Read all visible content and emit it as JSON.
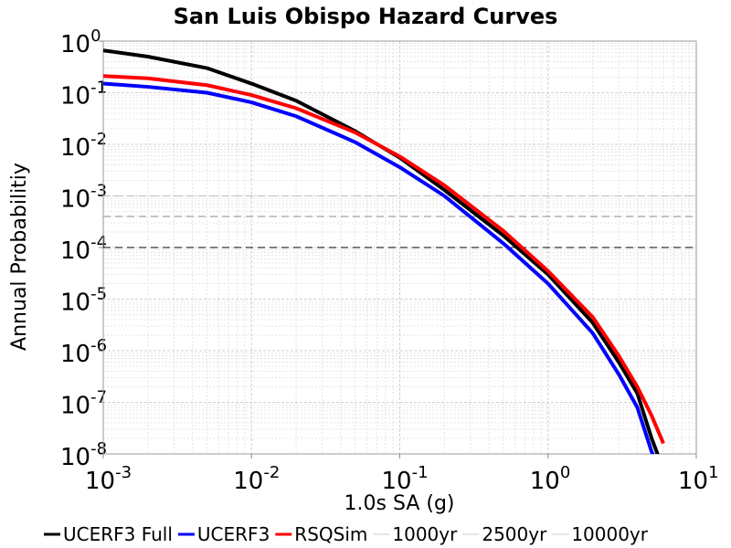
{
  "chart_data": {
    "type": "line",
    "title": "San Luis Obispo Hazard Curves",
    "xlabel": "1.0s SA (g)",
    "ylabel": "Annual Probabilitiy",
    "xscale": "log",
    "yscale": "log",
    "grid": true,
    "legend": "bottom",
    "x": [
      0.001,
      0.002,
      0.005,
      0.01,
      0.02,
      0.05,
      0.1,
      0.2,
      0.5,
      1,
      2,
      3,
      4,
      5,
      6
    ],
    "series": [
      {
        "name": "UCERF3 Full",
        "color": "#000000",
        "values": [
          0.66,
          0.5,
          0.3,
          0.15,
          0.07,
          0.018,
          0.0055,
          0.0013,
          0.00017,
          3e-05,
          3.5e-06,
          6e-07,
          1.5e-07,
          2e-08,
          5e-09
        ]
      },
      {
        "name": "UCERF3",
        "color": "#0000ff",
        "values": [
          0.15,
          0.13,
          0.1,
          0.065,
          0.035,
          0.011,
          0.0036,
          0.001,
          0.00012,
          2e-05,
          2.2e-06,
          3.5e-07,
          8e-08,
          1.1e-08,
          4e-09
        ]
      },
      {
        "name": "RSQSim",
        "color": "#ff0000",
        "values": [
          0.21,
          0.19,
          0.14,
          0.09,
          0.05,
          0.017,
          0.0058,
          0.0016,
          0.00021,
          3.5e-05,
          4.5e-06,
          8e-07,
          2e-07,
          5.5e-08,
          1.6e-08
        ]
      }
    ],
    "ref_lines": [
      {
        "name": "1000yr",
        "value": 0.001,
        "color": "#bbbbbb"
      },
      {
        "name": "2500yr",
        "value": 0.0004,
        "color": "#888888"
      },
      {
        "name": "10000yr",
        "value": 0.0001,
        "color": "#000000"
      }
    ],
    "xlim": [
      0.001,
      10
    ],
    "ylim": [
      1e-08,
      1
    ],
    "xticks": [
      {
        "value": 0.001,
        "label": "10",
        "exponent": "-3"
      },
      {
        "value": 0.01,
        "label": "10",
        "exponent": "-2"
      },
      {
        "value": 0.1,
        "label": "10",
        "exponent": "-1"
      },
      {
        "value": 1,
        "label": "10",
        "exponent": "0"
      },
      {
        "value": 10,
        "label": "10",
        "exponent": "1"
      }
    ],
    "yticks": [
      {
        "value": 1,
        "label": "10",
        "exponent": "0"
      },
      {
        "value": 0.1,
        "label": "10",
        "exponent": "-1"
      },
      {
        "value": 0.01,
        "label": "10",
        "exponent": "-2"
      },
      {
        "value": 0.001,
        "label": "10",
        "exponent": "-3"
      },
      {
        "value": 0.0001,
        "label": "10",
        "exponent": "-4"
      },
      {
        "value": 1e-05,
        "label": "10",
        "exponent": "-5"
      },
      {
        "value": 1e-06,
        "label": "10",
        "exponent": "-6"
      },
      {
        "value": 1e-07,
        "label": "10",
        "exponent": "-7"
      },
      {
        "value": 1e-08,
        "label": "10",
        "exponent": "-8"
      }
    ]
  }
}
